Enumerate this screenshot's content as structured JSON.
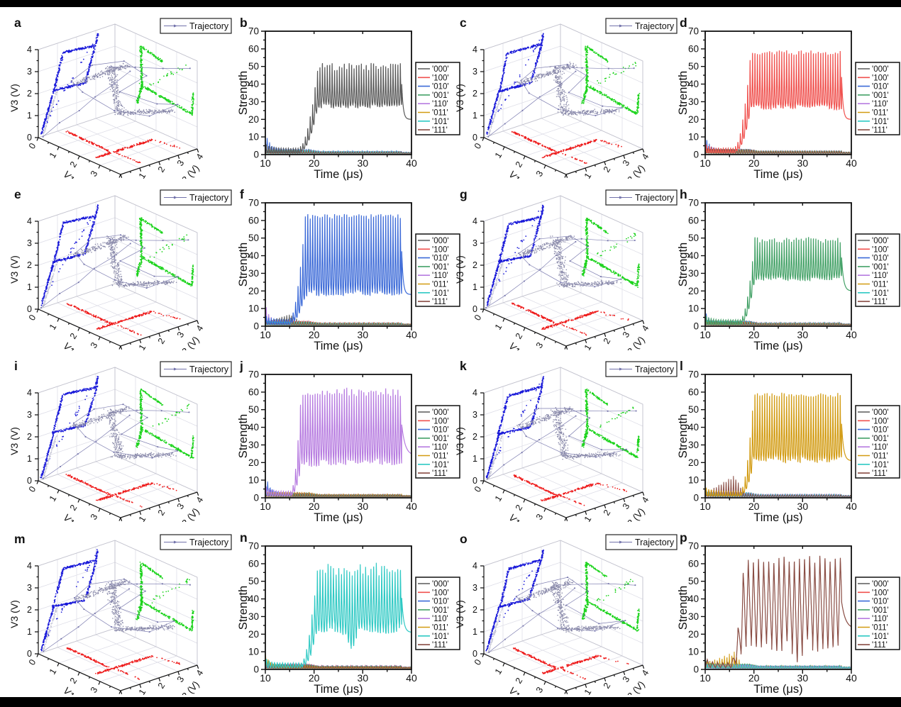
{
  "figure": {
    "background": "#ffffff",
    "bar_color": "#000000",
    "description": "4x4 grid of panels a-p: odd columns are 3D trajectory scatter plots (V1,V2,V3), even columns are Strength vs Time oscillation traces, each highlighting one binary-state series"
  },
  "scatter3d_common": {
    "x_label": "V1 (V)",
    "y_label": "V2 (V)",
    "z_label": "V3 (V)",
    "tick_labels": [
      "0",
      "1",
      "2",
      "3",
      "4"
    ],
    "axis_range": [
      0,
      4
    ],
    "legend_label": "Trajectory",
    "point_colors": {
      "left_wall": "#1a1ad9",
      "right_wall": "#1bd31b",
      "floor": "#ee1c1c",
      "cloud": "#8b8bab",
      "pale": "#c9c9d8",
      "line": "#7272aa"
    },
    "clusters": [
      {
        "name": "V2-V3 wall projection",
        "color": "#1a1ad9"
      },
      {
        "name": "V1-V3 wall projection",
        "color": "#1bd31b"
      },
      {
        "name": "V1-V2 floor projection",
        "color": "#ee1c1c"
      },
      {
        "name": "3D attractor cloud",
        "color": "#8b8bab"
      },
      {
        "name": "trajectory line",
        "color": "#7272aa"
      }
    ]
  },
  "shapes3d": {
    "blue_tail": [
      [
        0.1,
        0.15
      ],
      [
        0.75,
        1.95
      ]
    ],
    "blue_loop": [
      [
        0.75,
        1.95
      ],
      [
        1.2,
        3.55
      ],
      [
        2.95,
        3.4
      ],
      [
        2.35,
        1.8
      ]
    ],
    "blue_diag": [
      [
        0.3,
        0.6
      ],
      [
        3.1,
        3.85
      ]
    ],
    "blue_spur": [
      [
        2.95,
        3.4
      ],
      [
        3.05,
        3.88
      ]
    ],
    "green_vbar": [
      [
        1.35,
        1.75
      ],
      [
        1.3,
        3.55
      ]
    ],
    "green_top": [
      [
        1.3,
        3.55
      ],
      [
        2.35,
        3.3
      ]
    ],
    "green_bottom": [
      [
        1.3,
        1.8
      ],
      [
        3.82,
        1.5
      ]
    ],
    "green_hook": [
      [
        3.78,
        1.55
      ],
      [
        3.85,
        2.5
      ]
    ],
    "green_desc": [
      [
        1.12,
        0.88
      ],
      [
        1.35,
        1.75
      ]
    ],
    "green_diag": [
      [
        1.8,
        2.0
      ],
      [
        3.7,
        3.8
      ]
    ],
    "red_arm": [
      [
        0.3,
        1.2
      ],
      [
        2.45,
        1.15
      ]
    ],
    "red_bar": [
      [
        2.5,
        0.35
      ],
      [
        2.55,
        3.2
      ]
    ],
    "red_tail": [
      [
        2.6,
        1.25
      ],
      [
        3.8,
        1.3
      ]
    ],
    "red_sparse": [
      [
        2.55,
        3.2
      ],
      [
        3.75,
        3.55
      ]
    ],
    "gray_top": [
      [
        0.9,
        2.55
      ],
      [
        2.25,
        3.6
      ]
    ],
    "gray_vbar": [
      [
        1.8,
        3.5
      ],
      [
        2.05,
        1.4
      ]
    ],
    "gray_bottom": [
      [
        1.95,
        1.35
      ],
      [
        3.35,
        1.65
      ]
    ],
    "pale_tail": [
      [
        0.1,
        0.15
      ],
      [
        0.8,
        1.9
      ]
    ],
    "traj_line": [
      [
        0.1,
        0.1,
        0.1
      ],
      [
        2.3,
        2.3,
        3.3
      ]
    ],
    "traj_upper": [
      [
        1.8,
        1.8,
        3.4
      ],
      [
        3.9,
        3.7,
        3.7
      ]
    ],
    "traj_ring": [
      [
        0.9,
        0.9,
        2.7
      ],
      [
        1.5,
        1.2,
        3.5
      ],
      [
        2.3,
        2.0,
        3.8
      ],
      [
        2.7,
        2.6,
        3.2
      ],
      [
        2.1,
        2.1,
        2.4
      ],
      [
        2.9,
        3.0,
        1.8
      ],
      [
        3.5,
        3.5,
        1.9
      ],
      [
        2.7,
        2.9,
        1.3
      ],
      [
        1.9,
        1.9,
        1.5
      ],
      [
        1.2,
        1.1,
        2.2
      ]
    ]
  },
  "strength_common": {
    "x_label": "Time (μs)",
    "y_label": "Strength",
    "xlim": [
      10,
      40
    ],
    "ylim": [
      0,
      70
    ],
    "xticks": [
      10,
      20,
      30,
      40
    ],
    "yticks": [
      0,
      10,
      20,
      30,
      40,
      50,
      60,
      70
    ]
  },
  "legend_series": [
    {
      "label": "'000'",
      "color": "#5a5a5a"
    },
    {
      "label": "'100'",
      "color": "#f0524f"
    },
    {
      "label": "'010'",
      "color": "#3d6bd8"
    },
    {
      "label": "'001'",
      "color": "#45a268"
    },
    {
      "label": "'110'",
      "color": "#b77ce0"
    },
    {
      "label": "'011'",
      "color": "#d29b12"
    },
    {
      "label": "'101'",
      "color": "#2fc9c4"
    },
    {
      "label": "'111'",
      "color": "#8a4d44"
    }
  ],
  "chart_data": [
    {
      "id": "a",
      "type": "scatter3d",
      "seed": 11
    },
    {
      "id": "b",
      "type": "line",
      "active_series": "'000'",
      "color": "#5a5a5a",
      "period_us": 0.5,
      "rise_start_us": 17.2,
      "rise_end_us": 20.8,
      "osc_low": 28,
      "osc_high": 52,
      "peak_jitter": 2.5,
      "low_jitter": 1.5,
      "end_value": 20,
      "drop_us": 38,
      "decay_tau": 0.3,
      "sharpness": 2.6,
      "edge_series": "'010'",
      "edge_peak": 14,
      "background_max": 6
    },
    {
      "id": "c",
      "type": "scatter3d",
      "seed": 23
    },
    {
      "id": "d",
      "type": "line",
      "active_series": "'100'",
      "color": "#f0524f",
      "period_us": 0.5,
      "rise_start_us": 16.2,
      "rise_end_us": 19.4,
      "osc_low": 27,
      "osc_high": 61,
      "peak_jitter": 1.5,
      "low_jitter": 1.5,
      "end_value": 20,
      "drop_us": 38,
      "decay_tau": 0.3,
      "sharpness": 2.8,
      "edge_series": "'010'",
      "edge_peak": 11,
      "background_max": 6
    },
    {
      "id": "e",
      "type": "scatter3d",
      "seed": 37
    },
    {
      "id": "f",
      "type": "line",
      "active_series": "'010'",
      "color": "#3d6bd8",
      "period_us": 0.5,
      "rise_start_us": 15.2,
      "rise_end_us": 18.2,
      "osc_low": 19,
      "osc_high": 66,
      "peak_jitter": 1.5,
      "low_jitter": 2,
      "end_value": 18,
      "drop_us": 38,
      "decay_tau": 0.3,
      "sharpness": 2.4,
      "edge_series": "'110'",
      "edge_peak": 13,
      "pre_series": {
        "key": "'000'",
        "peak": 5,
        "tpeak_us": 15,
        "tend_us": 17.5
      },
      "background_max": 6
    },
    {
      "id": "g",
      "type": "scatter3d",
      "seed": 41
    },
    {
      "id": "h",
      "type": "line",
      "active_series": "'001'",
      "color": "#45a268",
      "period_us": 0.5,
      "rise_start_us": 17.4,
      "rise_end_us": 20.2,
      "osc_low": 27,
      "osc_high": 51,
      "peak_jitter": 1.8,
      "low_jitter": 1.5,
      "end_value": 20,
      "drop_us": 38,
      "decay_tau": 0.4,
      "sharpness": 2.4,
      "edge_series": "'010'",
      "edge_peak": 7,
      "background_max": 6
    },
    {
      "id": "i",
      "type": "scatter3d",
      "seed": 53
    },
    {
      "id": "j",
      "type": "line",
      "active_series": "'110'",
      "color": "#b77ce0",
      "period_us": 0.5,
      "rise_start_us": 15.4,
      "rise_end_us": 17.4,
      "osc_low": 20,
      "osc_high": 63,
      "peak_jitter": 2.5,
      "low_jitter": 2.5,
      "end_value": 24,
      "drop_us": 38,
      "decay_tau": 0.7,
      "sharpness": 2.0,
      "edge_series": "'010'",
      "edge_peak": 14,
      "background_max": 6
    },
    {
      "id": "k",
      "type": "scatter3d",
      "seed": 67
    },
    {
      "id": "l",
      "type": "line",
      "active_series": "'011'",
      "color": "#d29b12",
      "period_us": 0.5,
      "rise_start_us": 17.4,
      "rise_end_us": 20.0,
      "osc_low": 22,
      "osc_high": 62,
      "peak_jitter": 1.2,
      "low_jitter": 2,
      "end_value": 21,
      "drop_us": 38,
      "decay_tau": 0.4,
      "sharpness": 2.6,
      "pre_series": {
        "key": "'111'",
        "peak": 11,
        "tpeak_us": 16,
        "tend_us": 18
      },
      "background_max": 6
    },
    {
      "id": "m",
      "type": "scatter3d",
      "seed": 71
    },
    {
      "id": "n",
      "type": "line",
      "active_series": "'101'",
      "color": "#2fc9c4",
      "period_us": 0.55,
      "rise_start_us": 17.6,
      "rise_end_us": 20.6,
      "osc_low": 23,
      "osc_high": 58,
      "peak_jitter": 3,
      "low_jitter": 3,
      "end_value": 21,
      "drop_us": 38,
      "decay_tau": 0.4,
      "sharpness": 1.9,
      "dip": {
        "t_us": 27.6,
        "amp": 9
      },
      "edge_series": "'011'",
      "edge_peak": 9,
      "background_max": 6
    },
    {
      "id": "o",
      "type": "scatter3d",
      "seed": 83
    },
    {
      "id": "p",
      "type": "line",
      "active_series": "'111'",
      "color": "#8a4d44",
      "period_us": 1.05,
      "rise_start_us": 15.4,
      "rise_end_us": 18.0,
      "osc_low": 14,
      "osc_high": 63,
      "peak_jitter": 2,
      "low_jitter": 4,
      "end_value": 23,
      "drop_us": 38,
      "decay_tau": 0.8,
      "sharpness": 1.15,
      "dip": {
        "t_us": 29,
        "amp": 6
      },
      "pre_series": {
        "key": "'011'",
        "peak": 7,
        "tpeak_us": 16,
        "tend_us": 17.5
      },
      "background_max": 6
    }
  ]
}
